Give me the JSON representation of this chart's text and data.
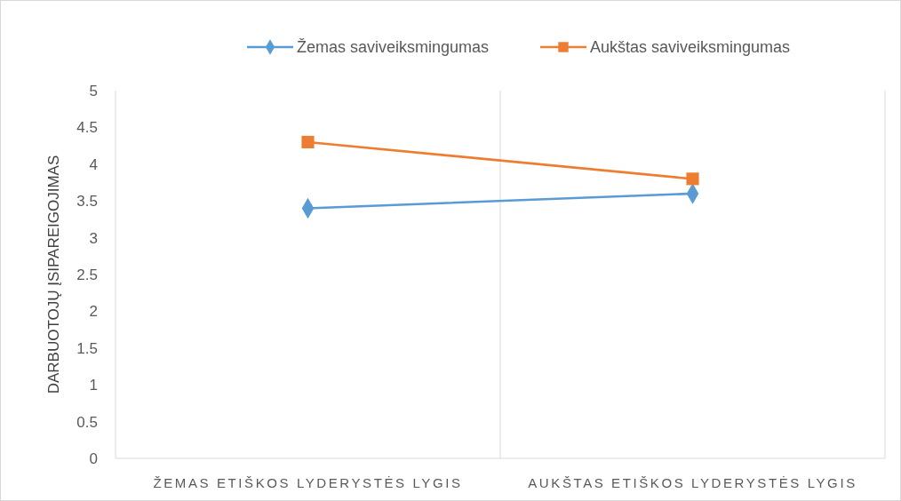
{
  "chart_data": {
    "type": "line",
    "ylabel": "DARBUOTOJŲ ĮSIPAREIGOJIMAS",
    "categories": [
      "ŽEMAS ETIŠKOS LYDERYSTĖS LYGIS",
      "AUKŠTAS ETIŠKOS LYDERYSTĖS LYGIS"
    ],
    "series": [
      {
        "name": "Žemas saviveiksmingumas",
        "color": "#5b9bd5",
        "marker": "diamond",
        "values": [
          3.4,
          3.6
        ]
      },
      {
        "name": "Aukštas saviveiksmingumas",
        "color": "#ed7d31",
        "marker": "square",
        "values": [
          4.3,
          3.8
        ]
      }
    ],
    "ylim": [
      0,
      5
    ],
    "yticks": [
      0,
      0.5,
      1,
      1.5,
      2,
      2.5,
      3,
      3.5,
      4,
      4.5,
      5
    ],
    "grid": "x",
    "legend": "top",
    "line_style": "solid"
  }
}
